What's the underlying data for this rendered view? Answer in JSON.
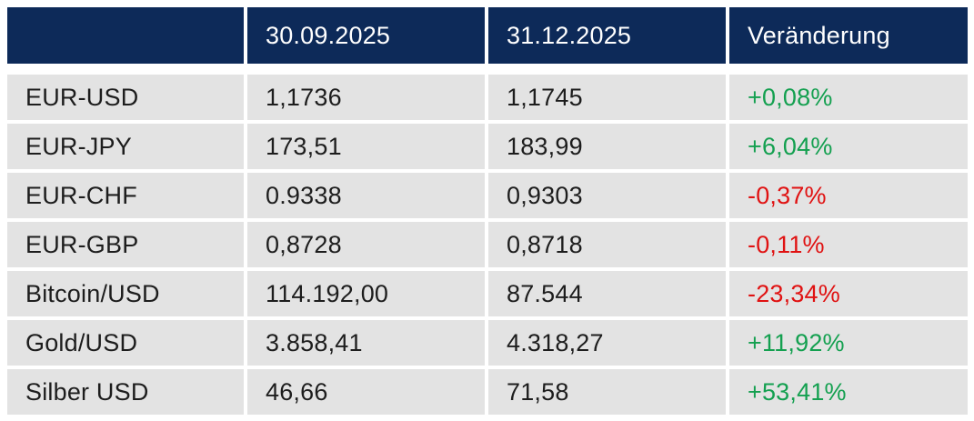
{
  "colors": {
    "background": "#ffffff",
    "header_bg": "#0d2a59",
    "header_text": "#ffffff",
    "row_bg": "#e3e3e3",
    "text": "#1d1d1d",
    "positive": "#14a050",
    "negative": "#e01212"
  },
  "chart_data": {
    "type": "table",
    "columns": [
      "",
      "30.09.2025",
      "31.12.2025",
      "Veränderung"
    ],
    "rows": [
      {
        "label": "EUR-USD",
        "value_start": "1,1736",
        "value_end": "1,1745",
        "change": "+0,08%",
        "direction": "positive"
      },
      {
        "label": "EUR-JPY",
        "value_start": "173,51",
        "value_end": "183,99",
        "change": "+6,04%",
        "direction": "positive"
      },
      {
        "label": "EUR-CHF",
        "value_start": "0.9338",
        "value_end": "0,9303",
        "change": "-0,37%",
        "direction": "negative"
      },
      {
        "label": "EUR-GBP",
        "value_start": "0,8728",
        "value_end": "0,8718",
        "change": "-0,11%",
        "direction": "negative"
      },
      {
        "label": "Bitcoin/USD",
        "value_start": "114.192,00",
        "value_end": "87.544",
        "change": "-23,34%",
        "direction": "negative"
      },
      {
        "label": "Gold/USD",
        "value_start": "3.858,41",
        "value_end": "4.318,27",
        "change": "+11,92%",
        "direction": "positive"
      },
      {
        "label": "Silber USD",
        "value_start": "46,66",
        "value_end": "71,58",
        "change": "+53,41%",
        "direction": "positive"
      }
    ]
  }
}
